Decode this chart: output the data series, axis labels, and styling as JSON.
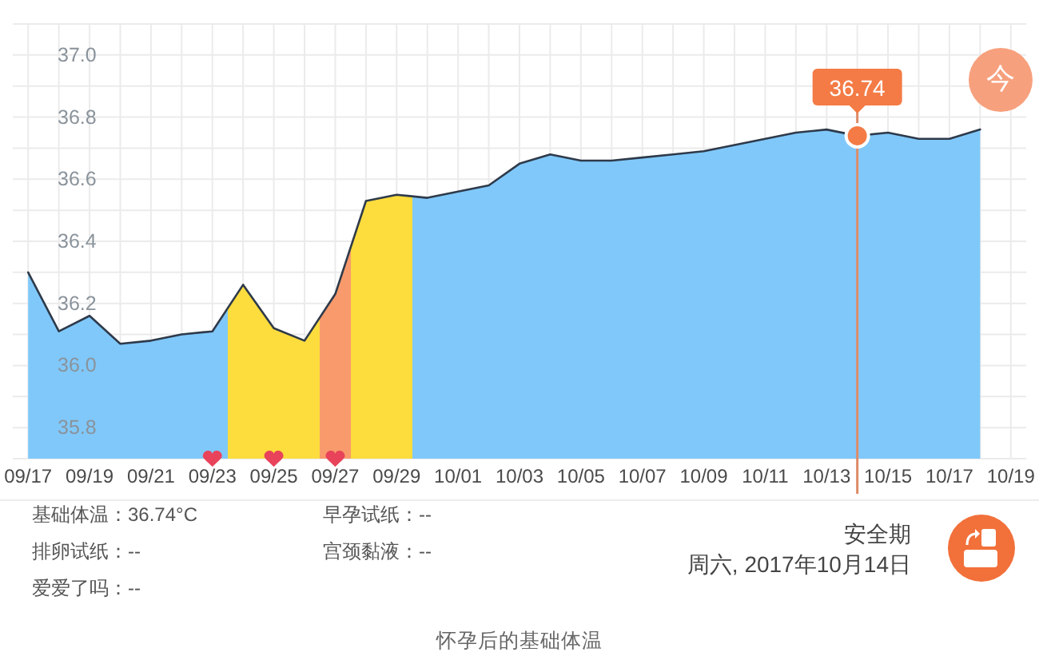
{
  "chart_data": {
    "type": "area",
    "series": [
      {
        "x": [
          "2017-09-17",
          "2017-09-18",
          "2017-09-19",
          "2017-09-20",
          "2017-09-21",
          "2017-09-22",
          "2017-09-23",
          "2017-09-24",
          "2017-09-25",
          "2017-09-26",
          "2017-09-27",
          "2017-09-28",
          "2017-09-29",
          "2017-09-30",
          "2017-10-01",
          "2017-10-02",
          "2017-10-03",
          "2017-10-04",
          "2017-10-05",
          "2017-10-06",
          "2017-10-07",
          "2017-10-08",
          "2017-10-09",
          "2017-10-10",
          "2017-10-11",
          "2017-10-12",
          "2017-10-13",
          "2017-10-14",
          "2017-10-15",
          "2017-10-16",
          "2017-10-17",
          "2017-10-18"
        ],
        "values": [
          36.3,
          36.11,
          36.16,
          36.07,
          36.08,
          36.1,
          36.11,
          36.26,
          36.12,
          36.08,
          36.23,
          36.53,
          36.55,
          36.54,
          36.56,
          36.58,
          36.65,
          36.68,
          36.66,
          36.66,
          36.67,
          36.68,
          36.69,
          36.71,
          36.73,
          36.75,
          36.76,
          36.74,
          36.75,
          36.73,
          36.73,
          36.76
        ],
        "colors": [
          "#80c8fa",
          "#80c8fa",
          "#80c8fa",
          "#80c8fa",
          "#80c8fa",
          "#80c8fa",
          "#80c8fa",
          "#fddc3e",
          "#fddc3e",
          "#fddc3e",
          "#f99a6c",
          "#fddc3e",
          "#fddc3e",
          "#80c8fa",
          "#80c8fa",
          "#80c8fa",
          "#80c8fa",
          "#80c8fa",
          "#80c8fa",
          "#80c8fa",
          "#80c8fa",
          "#80c8fa",
          "#80c8fa",
          "#80c8fa",
          "#80c8fa",
          "#80c8fa",
          "#80c8fa",
          "#80c8fa",
          "#80c8fa",
          "#80c8fa",
          "#80c8fa",
          "#80c8fa"
        ]
      },
      {
        "type": "scatter",
        "x": [
          "2017-09-23",
          "2017-09-25",
          "2017-09-27"
        ],
        "values": [
          35.7,
          35.7,
          35.7
        ],
        "color": "#e8435a"
      }
    ],
    "xlim": [
      "2017-09-16T12:00",
      "2017-10-19T12:00"
    ],
    "xticks": [
      {
        "value": "2017-09-17",
        "label": "09/17"
      },
      {
        "value": "2017-09-18",
        "label": null
      },
      {
        "value": "2017-09-19",
        "label": "09/19"
      },
      {
        "value": "2017-09-20",
        "label": null
      },
      {
        "value": "2017-09-21",
        "label": "09/21"
      },
      {
        "value": "2017-09-22",
        "label": null
      },
      {
        "value": "2017-09-23",
        "label": "09/23"
      },
      {
        "value": "2017-09-24",
        "label": null
      },
      {
        "value": "2017-09-25",
        "label": "09/25"
      },
      {
        "value": "2017-09-26",
        "label": null
      },
      {
        "value": "2017-09-27",
        "label": "09/27"
      },
      {
        "value": "2017-09-28",
        "label": null
      },
      {
        "value": "2017-09-29",
        "label": "09/29"
      },
      {
        "value": "2017-09-30",
        "label": null
      },
      {
        "value": "2017-10-01",
        "label": "10/01"
      },
      {
        "value": "2017-10-02",
        "label": null
      },
      {
        "value": "2017-10-03",
        "label": "10/03"
      },
      {
        "value": "2017-10-04",
        "label": null
      },
      {
        "value": "2017-10-05",
        "label": "10/05"
      },
      {
        "value": "2017-10-06",
        "label": null
      },
      {
        "value": "2017-10-07",
        "label": "10/07"
      },
      {
        "value": "2017-10-08",
        "label": null
      },
      {
        "value": "2017-10-09",
        "label": "10/09"
      },
      {
        "value": "2017-10-10",
        "label": null
      },
      {
        "value": "2017-10-11",
        "label": "10/11"
      },
      {
        "value": "2017-10-12",
        "label": null
      },
      {
        "value": "2017-10-13",
        "label": "10/13"
      },
      {
        "value": "2017-10-14",
        "label": null
      },
      {
        "value": "2017-10-15",
        "label": "10/15"
      },
      {
        "value": "2017-10-16",
        "label": null
      },
      {
        "value": "2017-10-17",
        "label": "10/17"
      },
      {
        "value": "2017-10-18",
        "label": null
      },
      {
        "value": "2017-10-19",
        "label": "10/19"
      }
    ],
    "ylim": [
      35.7,
      37.1
    ],
    "yticks": [
      {
        "value": 35.7,
        "label": null
      },
      35.8,
      {
        "value": 35.9,
        "label": null
      },
      {
        "value": 36,
        "label": "36.0"
      },
      {
        "value": 36.1,
        "label": null
      },
      36.2,
      {
        "value": 36.3,
        "label": null
      },
      36.4,
      {
        "value": 36.5,
        "label": null
      },
      36.6,
      {
        "value": 36.7,
        "label": null
      },
      36.8,
      {
        "value": 36.9,
        "label": null
      },
      {
        "value": 37,
        "label": "37.0"
      },
      {
        "value": 37.1,
        "label": null
      }
    ],
    "grid": true,
    "ref_lines": [
      {
        "axis": "x",
        "value": "2017-10-14",
        "color": "#de8a68"
      }
    ],
    "annotations": [
      {
        "text": "36.74",
        "x": "2017-10-14",
        "y": 36.74
      },
      "今",
      "基础体温：36.74°C",
      "早孕试纸：--",
      "排卵试纸：--",
      "宫颈黏液：--",
      "爱爱了吗：--",
      "安全期",
      "周六, 2017年10月14日",
      "怀孕后的基础体温"
    ]
  }
}
